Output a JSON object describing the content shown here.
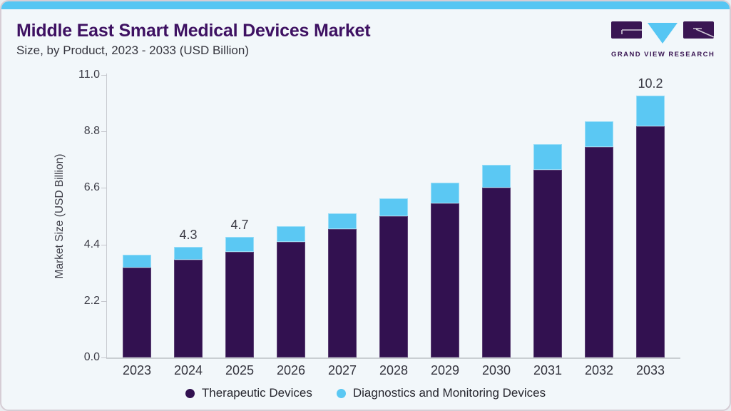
{
  "page": {
    "title": "Middle East Smart Medical Devices Market",
    "subtitle": "Size, by Product, 2023 - 2033 (USD Billion)",
    "brand": {
      "name": "GRAND VIEW RESEARCH",
      "purple": "#3a1653",
      "blue": "#56c6f3"
    }
  },
  "chart_data": {
    "type": "bar",
    "stacked": true,
    "title": "Middle East Smart Medical Devices Market Size, by Product, 2023 - 2033 (USD Billion)",
    "categories": [
      "2023",
      "2024",
      "2025",
      "2026",
      "2027",
      "2028",
      "2029",
      "2030",
      "2031",
      "2032",
      "2033"
    ],
    "series": [
      {
        "name": "Therapeutic Devices",
        "color": "#321150",
        "values": [
          3.5,
          3.8,
          4.1,
          4.5,
          5.0,
          5.5,
          6.0,
          6.6,
          7.3,
          8.2,
          9.0
        ]
      },
      {
        "name": "Diagnostics and Monitoring Devices",
        "color": "#5bc8f3",
        "values": [
          0.5,
          0.5,
          0.6,
          0.6,
          0.6,
          0.7,
          0.8,
          0.9,
          1.0,
          1.0,
          1.2
        ]
      }
    ],
    "totals": [
      4.0,
      4.3,
      4.7,
      5.1,
      5.6,
      6.2,
      6.8,
      7.5,
      8.3,
      9.2,
      10.2
    ],
    "data_labels": [
      "",
      "4.3",
      "4.7",
      "",
      "",
      "",
      "",
      "",
      "",
      "",
      "10.2"
    ],
    "xlabel": "",
    "ylabel": "Market Size (USD Billion)",
    "ylim": [
      0,
      11.0
    ],
    "yticks": [
      0.0,
      2.2,
      4.4,
      6.6,
      8.8,
      11.0
    ],
    "ytick_labels": [
      "0.0",
      "2.2",
      "4.4",
      "6.6",
      "8.8",
      "11.0"
    ],
    "grid": false,
    "legend_position": "bottom"
  }
}
